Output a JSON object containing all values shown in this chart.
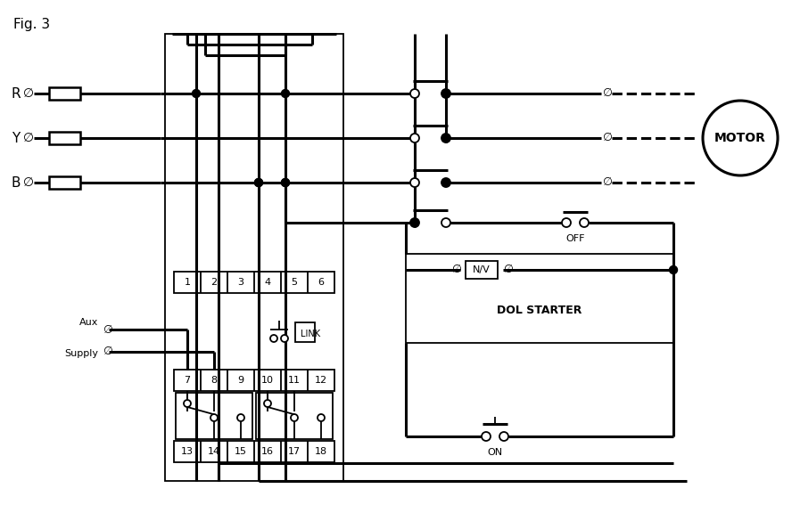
{
  "title": "Fig. 3",
  "bg_color": "#ffffff",
  "line_color": "#000000",
  "fig_width": 8.88,
  "fig_height": 5.76,
  "phases": [
    "R",
    "Y",
    "B"
  ],
  "motor_label": "MOTOR",
  "dol_label": "DOL STARTER",
  "nv_label": "N/V",
  "off_label": "OFF",
  "on_label": "ON",
  "link_label": "LINK",
  "aux_label1": "Aux",
  "aux_label2": "Supply",
  "terminal_top": [
    "1",
    "2",
    "3",
    "4",
    "5",
    "6"
  ],
  "terminal_mid": [
    "7",
    "8",
    "9",
    "10",
    "11",
    "12"
  ],
  "terminal_bot": [
    "13",
    "14",
    "15",
    "16",
    "17",
    "18"
  ]
}
